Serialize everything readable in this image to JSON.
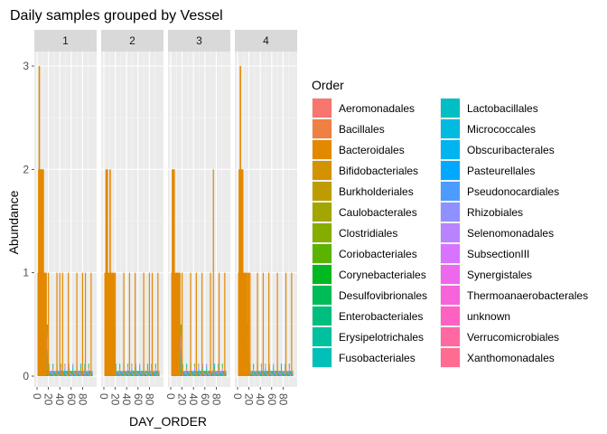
{
  "chart_data": {
    "type": "bar",
    "title": "Daily samples grouped by Vessel",
    "xlabel": "DAY_ORDER",
    "ylabel": "Abundance",
    "xlim": [
      0,
      100
    ],
    "ylim": [
      0,
      3
    ],
    "x_ticks": [
      "0",
      "20",
      "40",
      "60",
      "80"
    ],
    "y_ticks": [
      "0",
      "1",
      "2",
      "3"
    ],
    "grid": true,
    "facets": [
      "1",
      "2",
      "3",
      "4"
    ],
    "legend": {
      "title": "Order",
      "placement": "right",
      "entries": [
        {
          "name": "Aeromonadales",
          "color": "#F8766D"
        },
        {
          "name": "Bacillales",
          "color": "#EE8043"
        },
        {
          "name": "Bacteroidales",
          "color": "#E38900"
        },
        {
          "name": "Bifidobacteriales",
          "color": "#D39200"
        },
        {
          "name": "Burkholderiales",
          "color": "#BE9C00"
        },
        {
          "name": "Caulobacterales",
          "color": "#A3A500"
        },
        {
          "name": "Clostridiales",
          "color": "#84AD00"
        },
        {
          "name": "Coriobacteriales",
          "color": "#5BB300"
        },
        {
          "name": "Corynebacteriales",
          "color": "#00B81F"
        },
        {
          "name": "Desulfovibrionales",
          "color": "#00BC56"
        },
        {
          "name": "Enterobacteriales",
          "color": "#00BE7D"
        },
        {
          "name": "Erysipelotrichales",
          "color": "#00C19F"
        },
        {
          "name": "Fusobacteriales",
          "color": "#00C0B8"
        },
        {
          "name": "Lactobacillales",
          "color": "#00BFC4"
        },
        {
          "name": "Micrococcales",
          "color": "#00BAE0"
        },
        {
          "name": "Obscuribacterales",
          "color": "#00B4F0"
        },
        {
          "name": "Pasteurellales",
          "color": "#00A9FF"
        },
        {
          "name": "Pseudonocardiales",
          "color": "#4C9CFF"
        },
        {
          "name": "Rhizobiales",
          "color": "#8F91FF"
        },
        {
          "name": "Selenomonadales",
          "color": "#B983FF"
        },
        {
          "name": "SubsectionIII",
          "color": "#D973FF"
        },
        {
          "name": "Synergistales",
          "color": "#ED68ED"
        },
        {
          "name": "Thermoanaerobacterales",
          "color": "#F663DB"
        },
        {
          "name": "unknown",
          "color": "#FF61C3"
        },
        {
          "name": "Verrucomicrobiales",
          "color": "#FF68A1"
        },
        {
          "name": "Xanthomonadales",
          "color": "#FF6C91"
        }
      ]
    },
    "series": [
      {
        "name": "Bacteroidales",
        "facet": "1",
        "days": [
          2,
          3,
          4,
          5,
          6,
          7,
          8,
          9,
          10,
          11,
          12,
          13,
          14,
          15,
          16,
          20,
          35,
          40,
          45,
          55,
          70,
          80,
          85,
          95
        ],
        "values": [
          1,
          2,
          3,
          2,
          2,
          2,
          2,
          2,
          2,
          2,
          1,
          1,
          1,
          1,
          1,
          1,
          1,
          1,
          1,
          1,
          1,
          1,
          1,
          1
        ]
      },
      {
        "name": "Bacteroidales",
        "facet": "2",
        "days": [
          2,
          3,
          4,
          5,
          6,
          7,
          8,
          9,
          10,
          11,
          12,
          13,
          14,
          15,
          16,
          17,
          18,
          20,
          35,
          45,
          55,
          70,
          80,
          85,
          95
        ],
        "values": [
          1,
          1,
          2,
          2,
          2,
          1,
          1,
          1,
          1,
          2,
          1,
          1,
          1,
          1,
          1,
          1,
          1,
          1,
          1,
          1,
          1,
          1,
          1,
          1,
          1
        ]
      },
      {
        "name": "Bacteroidales",
        "facet": "3",
        "days": [
          2,
          3,
          4,
          5,
          6,
          7,
          8,
          9,
          10,
          11,
          12,
          13,
          14,
          15,
          16,
          20,
          35,
          45,
          55,
          70,
          75,
          85,
          95
        ],
        "values": [
          1,
          2,
          2,
          2,
          2,
          1,
          1,
          1,
          1,
          1,
          1,
          1,
          1,
          1,
          1,
          1,
          1,
          1,
          1,
          1,
          2,
          1,
          1
        ]
      },
      {
        "name": "Bacteroidales",
        "facet": "4",
        "days": [
          2,
          3,
          4,
          5,
          6,
          7,
          8,
          9,
          10,
          11,
          12,
          13,
          14,
          15,
          16,
          18,
          20,
          22,
          35,
          45,
          55,
          70,
          85,
          95
        ],
        "values": [
          1,
          2,
          2,
          3,
          2,
          2,
          2,
          2,
          1,
          1,
          1,
          1,
          1,
          1,
          1,
          1,
          1,
          1,
          1,
          1,
          1,
          1,
          1,
          1
        ]
      }
    ]
  }
}
